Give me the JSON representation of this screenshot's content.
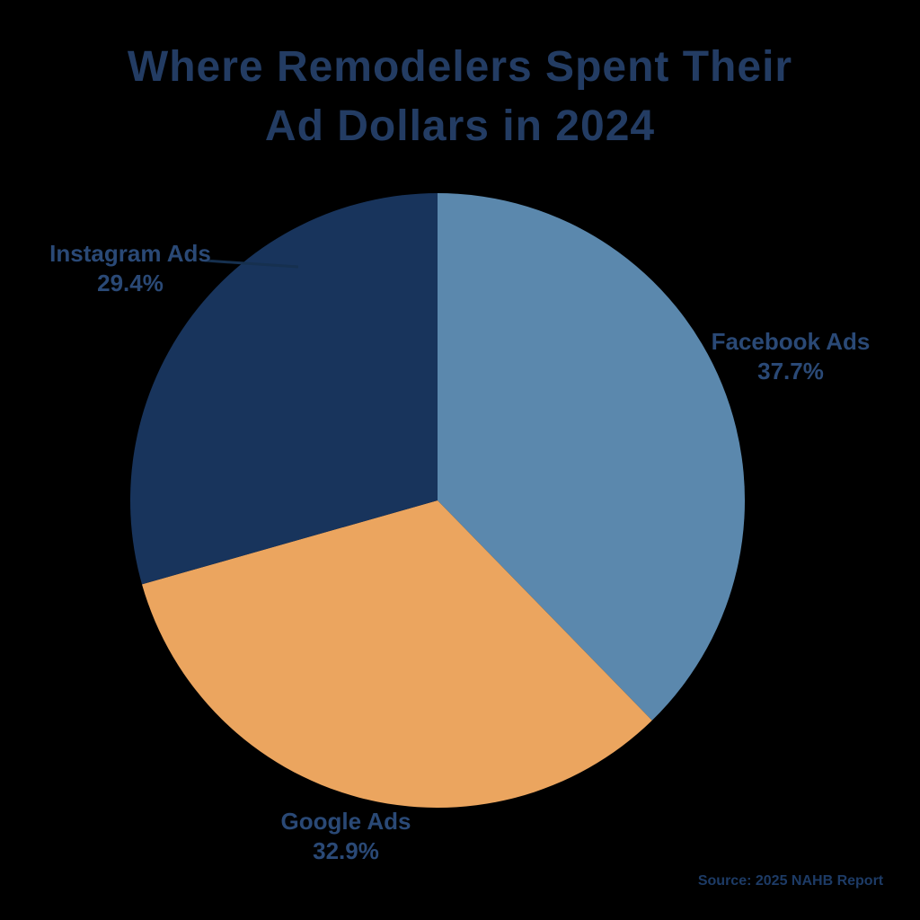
{
  "title": {
    "line1": "Where Remodelers Spent Their",
    "line2": "Ad Dollars in 2024"
  },
  "source_note": "Source: 2025 NAHB Report",
  "colors": {
    "background": "#000000",
    "title_text": "#233c63",
    "label_text": "#2a4976",
    "leader_line": "#16304f"
  },
  "chart_data": {
    "type": "pie",
    "title": "Where Remodelers Spent Their Ad Dollars in 2024",
    "legend_position": "none",
    "labels_position": "outside",
    "center": [
      487,
      557
    ],
    "radius": 342,
    "start_angle_deg": -90,
    "direction": "clockwise",
    "categories": [
      "Facebook Ads",
      "Google Ads",
      "Instagram Ads"
    ],
    "values": [
      37.7,
      32.9,
      29.4
    ],
    "slices": [
      {
        "id": "facebook-ads",
        "label": "Facebook Ads",
        "value": 37.7,
        "value_label": "37.7%",
        "color": "#5b88ad"
      },
      {
        "id": "google-ads",
        "label": "Google Ads",
        "value": 32.9,
        "value_label": "32.9%",
        "color": "#eba55f"
      },
      {
        "id": "instagram-ads",
        "label": "Instagram Ads",
        "value": 29.4,
        "value_label": "29.4%",
        "color": "#18345c"
      }
    ],
    "leader_line": {
      "from": [
        228,
        290
      ],
      "to": [
        332,
        297
      ]
    }
  }
}
